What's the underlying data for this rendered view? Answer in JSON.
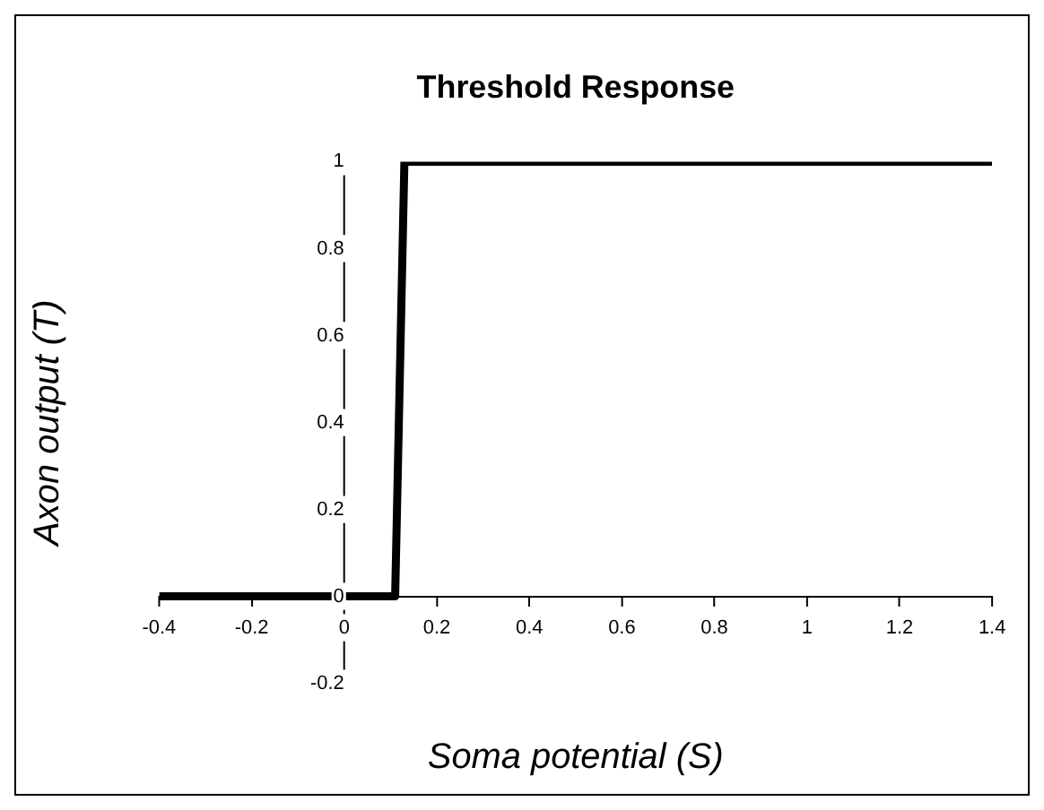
{
  "chart_data": {
    "type": "line",
    "title": "Threshold Response",
    "xlabel": "Soma potential (S)",
    "ylabel": "Axon output (T)",
    "x": [
      -0.4,
      0.11,
      0.13,
      1.4
    ],
    "series": [
      {
        "color": "#000000",
        "values": [
          0,
          0,
          1,
          1
        ]
      }
    ],
    "xlim": [
      -0.4,
      1.4
    ],
    "xticks": [
      -0.4,
      -0.2,
      0,
      0.2,
      0.4,
      0.6,
      0.8,
      1,
      1.2,
      1.4
    ],
    "ylim": [
      -0.2,
      1
    ],
    "yticks": [
      -0.2,
      0,
      0.2,
      0.4,
      0.6,
      0.8,
      1
    ],
    "grid": false,
    "legend": false,
    "marker": "none",
    "line_style": "solid"
  }
}
